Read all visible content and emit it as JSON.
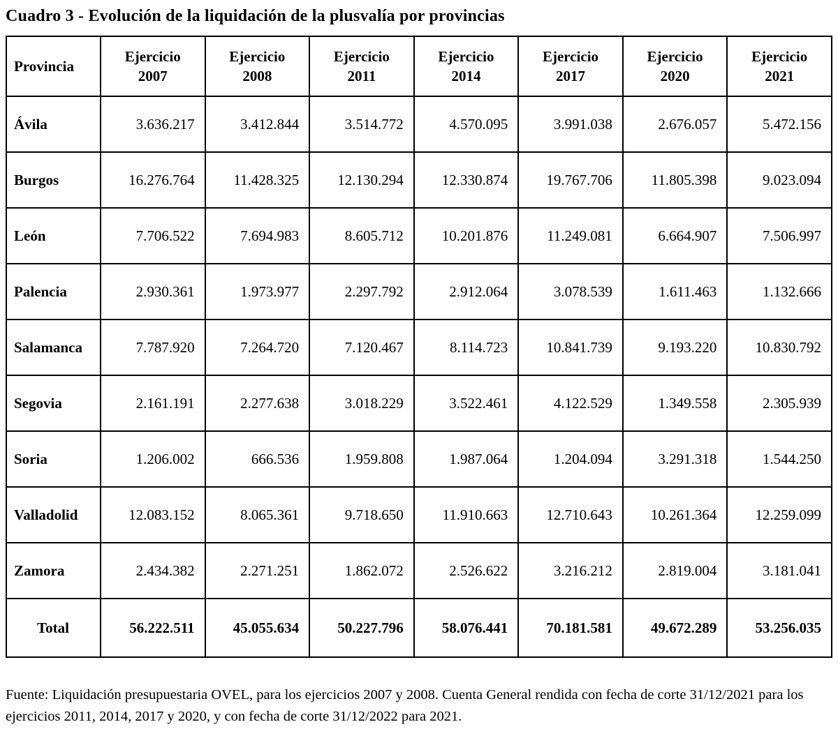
{
  "title": "Cuadro 3 - Evolución de la liquidación de la plusvalía por provincias",
  "table": {
    "province_header": "Provincia",
    "year_header_word": "Ejercicio",
    "years": [
      "2007",
      "2008",
      "2011",
      "2014",
      "2017",
      "2020",
      "2021"
    ],
    "rows": [
      {
        "province": "Ávila",
        "values": [
          "3.636.217",
          "3.412.844",
          "3.514.772",
          "4.570.095",
          "3.991.038",
          "2.676.057",
          "5.472.156"
        ]
      },
      {
        "province": "Burgos",
        "values": [
          "16.276.764",
          "11.428.325",
          "12.130.294",
          "12.330.874",
          "19.767.706",
          "11.805.398",
          "9.023.094"
        ]
      },
      {
        "province": "León",
        "values": [
          "7.706.522",
          "7.694.983",
          "8.605.712",
          "10.201.876",
          "11.249.081",
          "6.664.907",
          "7.506.997"
        ]
      },
      {
        "province": "Palencia",
        "values": [
          "2.930.361",
          "1.973.977",
          "2.297.792",
          "2.912.064",
          "3.078.539",
          "1.611.463",
          "1.132.666"
        ]
      },
      {
        "province": "Salamanca",
        "values": [
          "7.787.920",
          "7.264.720",
          "7.120.467",
          "8.114.723",
          "10.841.739",
          "9.193.220",
          "10.830.792"
        ]
      },
      {
        "province": "Segovia",
        "values": [
          "2.161.191",
          "2.277.638",
          "3.018.229",
          "3.522.461",
          "4.122.529",
          "1.349.558",
          "2.305.939"
        ]
      },
      {
        "province": "Soria",
        "values": [
          "1.206.002",
          "666.536",
          "1.959.808",
          "1.987.064",
          "1.204.094",
          "3.291.318",
          "1.544.250"
        ]
      },
      {
        "province": "Valladolid",
        "values": [
          "12.083.152",
          "8.065.361",
          "9.718.650",
          "11.910.663",
          "12.710.643",
          "10.261.364",
          "12.259.099"
        ]
      },
      {
        "province": "Zamora",
        "values": [
          "2.434.382",
          "2.271.251",
          "1.862.072",
          "2.526.622",
          "3.216.212",
          "2.819.004",
          "3.181.041"
        ]
      },
      {
        "province": "Total",
        "is_total": true,
        "values": [
          "56.222.511",
          "45.055.634",
          "50.227.796",
          "58.076.441",
          "70.181.581",
          "49.672.289",
          "53.256.035"
        ]
      }
    ]
  },
  "footnote": {
    "text": "Fuente: Liquidación presupuestaria OVEL, para los ejercicios 2007 y 2008. Cuenta General rendida con fecha de corte 31/12/2021 para los ejercicios 2011, 2014, 2017 y 2020, y con fecha de corte 31/12/2022 para 2021."
  }
}
